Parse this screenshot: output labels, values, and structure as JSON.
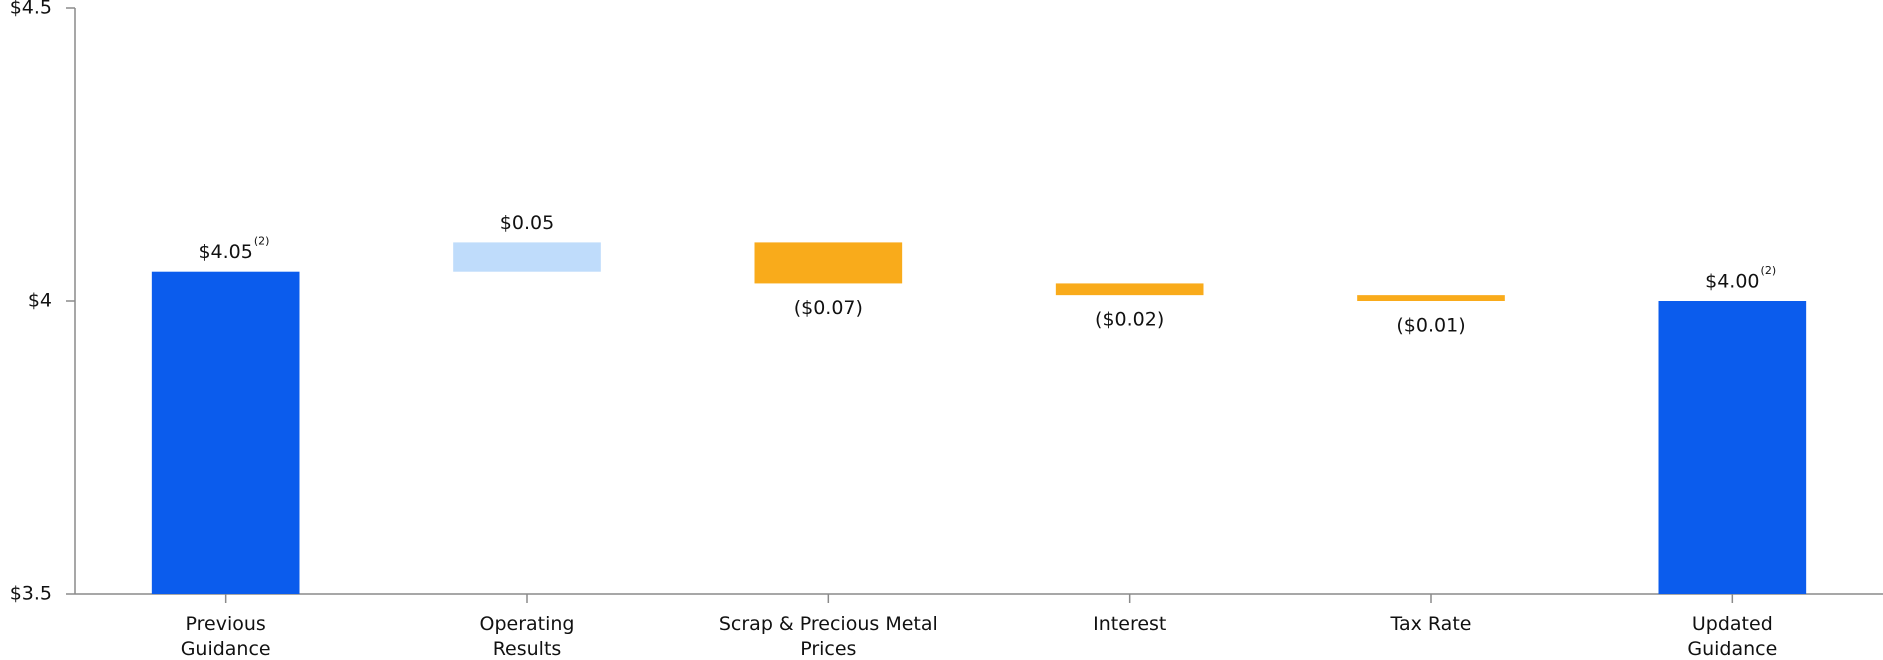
{
  "chart_data": {
    "type": "waterfall",
    "categories": [
      "Previous Guidance",
      "Operating Results",
      "Scrap & Precious Metal Prices",
      "Interest",
      "Tax Rate",
      "Updated Guidance"
    ],
    "values": [
      4.05,
      0.05,
      -0.07,
      -0.02,
      -0.01,
      4.0
    ],
    "value_labels": [
      "$4.05",
      "$0.05",
      "($0.07)",
      "($0.02)",
      "($0.01)",
      "$4.00"
    ],
    "value_notes": [
      "(2)",
      null,
      null,
      null,
      null,
      "(2)"
    ],
    "measures": [
      "total",
      "relative",
      "relative",
      "relative",
      "relative",
      "total"
    ],
    "colors": {
      "total": "#0b5ced",
      "increase": "#bfdcfb",
      "decrease": "#f9ab1b"
    },
    "ylim": [
      3.5,
      4.5
    ],
    "yticks": [
      {
        "value": 3.5,
        "label": "$3.5"
      },
      {
        "value": 4,
        "label": "$4"
      },
      {
        "value": 4.5,
        "label": "$4.5"
      }
    ]
  }
}
